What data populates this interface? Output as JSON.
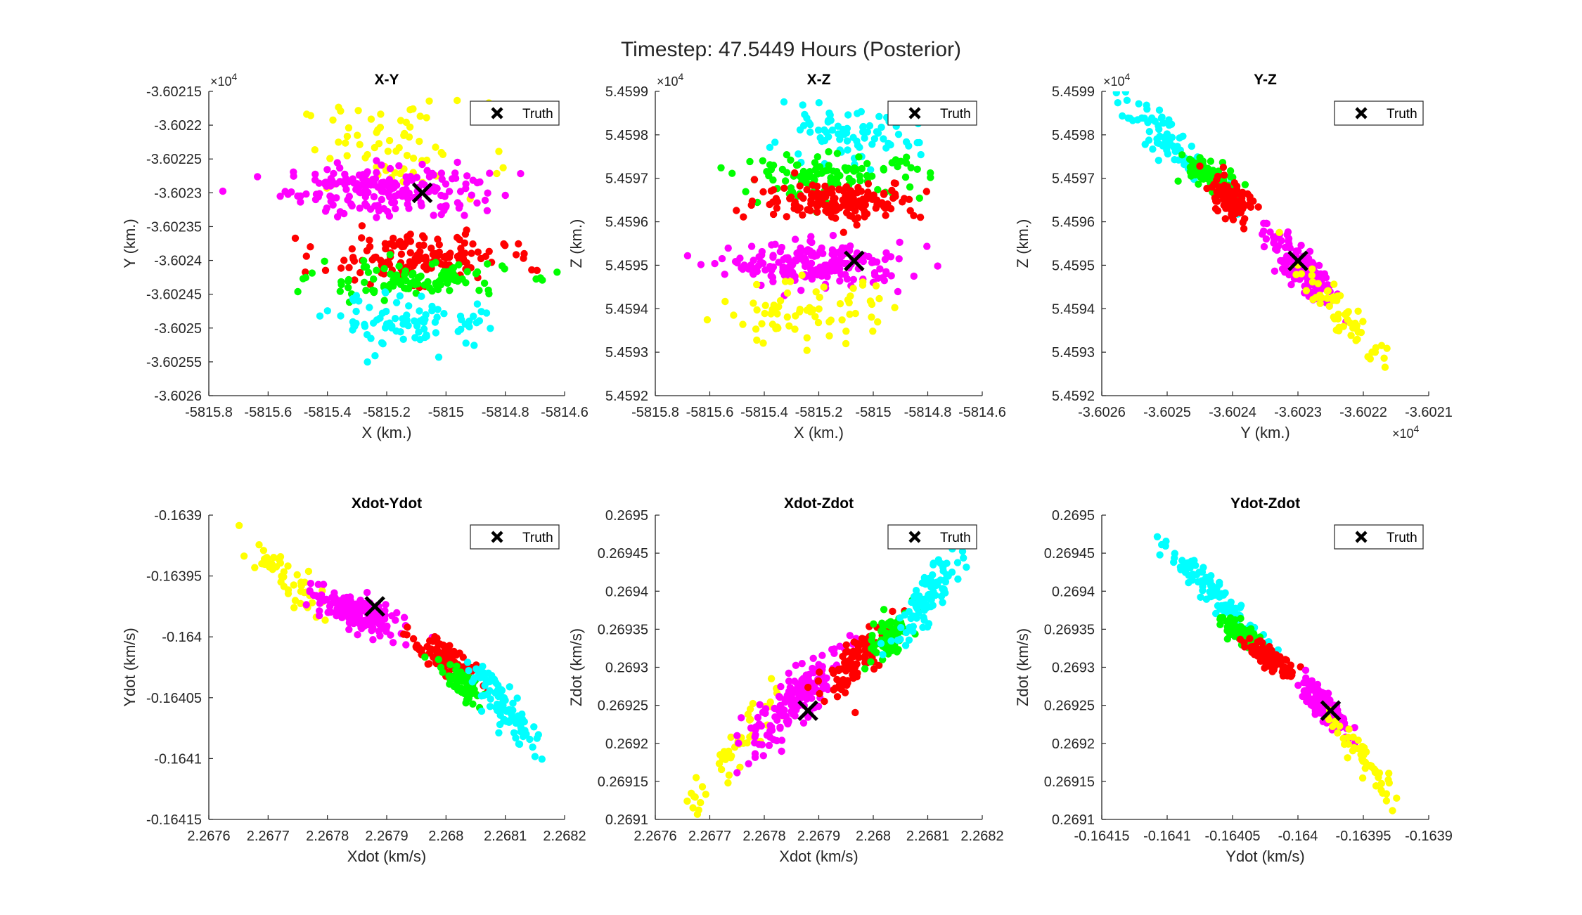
{
  "figure_title": "Timestep: 47.5449 Hours (Posterior)",
  "colors": {
    "yellow": "#ffff00",
    "magenta": "#ff00ff",
    "red": "#ff0000",
    "green": "#00ff00",
    "cyan": "#00ffff",
    "truth": "#000000",
    "axis": "#262626"
  },
  "chart_data": [
    {
      "type": "scatter",
      "title": "X-Y",
      "xlabel": "X (km.)",
      "ylabel": "Y (km.)",
      "xlim": [
        -5815.8,
        -5814.6
      ],
      "ylim": [
        -36026.0,
        -36021.5
      ],
      "xticks": [
        -5815.8,
        -5815.6,
        -5815.4,
        -5815.2,
        -5815.0,
        -5814.8,
        -5814.6
      ],
      "xtick_labels": [
        "-5815.8",
        "-5815.6",
        "-5815.4",
        "-5815.2",
        "-5815",
        "-5814.8",
        "-5814.6"
      ],
      "yticks": [
        -36026.0,
        -36025.5,
        -36025.0,
        -36024.5,
        -36024.0,
        -36023.5,
        -36023.0,
        -36022.5,
        -36022.0,
        -36021.5
      ],
      "ytick_labels": [
        "-3.6026",
        "-3.60255",
        "-3.6025",
        "-3.60245",
        "-3.6024",
        "-3.60235",
        "-3.6023",
        "-3.60225",
        "-3.6022",
        "-3.60215"
      ],
      "y_multiplier": "×10^4",
      "x_multiplier": "",
      "legend": "Truth",
      "legend_location": "top-right",
      "truth": [
        -5815.08,
        -36023.0
      ],
      "clusters": [
        {
          "color": "yellow",
          "cx": -5815.18,
          "cy": -36022.35,
          "sx": 0.16,
          "sy": 0.35,
          "n": 70
        },
        {
          "color": "magenta",
          "cx": -5815.2,
          "cy": -36022.95,
          "sx": 0.17,
          "sy": 0.2,
          "n": 190
        },
        {
          "color": "red",
          "cx": -5815.1,
          "cy": -36023.95,
          "sx": 0.15,
          "sy": 0.17,
          "n": 150
        },
        {
          "color": "green",
          "cx": -5815.12,
          "cy": -36024.3,
          "sx": 0.17,
          "sy": 0.13,
          "n": 110
        },
        {
          "color": "cyan",
          "cx": -5815.1,
          "cy": -36024.9,
          "sx": 0.14,
          "sy": 0.2,
          "n": 90
        }
      ]
    },
    {
      "type": "scatter",
      "title": "X-Z",
      "xlabel": "X (km.)",
      "ylabel": "Z (km.)",
      "xlim": [
        -5815.8,
        -5814.6
      ],
      "ylim": [
        54592,
        54599
      ],
      "xticks": [
        -5815.8,
        -5815.6,
        -5815.4,
        -5815.2,
        -5815.0,
        -5814.8,
        -5814.6
      ],
      "xtick_labels": [
        "-5815.8",
        "-5815.6",
        "-5815.4",
        "-5815.2",
        "-5815",
        "-5814.8",
        "-5814.6"
      ],
      "yticks": [
        54592,
        54593,
        54594,
        54595,
        54596,
        54597,
        54598,
        54599
      ],
      "ytick_labels": [
        "5.4592",
        "5.4593",
        "5.4594",
        "5.4595",
        "5.4596",
        "5.4597",
        "5.4598",
        "5.4599"
      ],
      "y_multiplier": "×10^4",
      "x_multiplier": "",
      "legend": "Truth",
      "legend_location": "top-right",
      "truth": [
        -5815.07,
        54595.1
      ],
      "clusters": [
        {
          "color": "cyan",
          "cx": -5815.12,
          "cy": 54597.9,
          "sx": 0.14,
          "sy": 0.3,
          "n": 80
        },
        {
          "color": "green",
          "cx": -5815.15,
          "cy": 54597.05,
          "sx": 0.17,
          "sy": 0.25,
          "n": 110
        },
        {
          "color": "red",
          "cx": -5815.12,
          "cy": 54596.5,
          "sx": 0.15,
          "sy": 0.22,
          "n": 160
        },
        {
          "color": "magenta",
          "cx": -5815.2,
          "cy": 54595.0,
          "sx": 0.16,
          "sy": 0.25,
          "n": 200
        },
        {
          "color": "yellow",
          "cx": -5815.25,
          "cy": 54593.9,
          "sx": 0.16,
          "sy": 0.35,
          "n": 70
        }
      ]
    },
    {
      "type": "scatter",
      "title": "Y-Z",
      "xlabel": "Y (km.)",
      "ylabel": "Z (km.)",
      "xlim": [
        -36026,
        -36021
      ],
      "ylim": [
        54592,
        54599
      ],
      "xticks": [
        -36026,
        -36025,
        -36024,
        -36023,
        -36022,
        -36021
      ],
      "xtick_labels": [
        "-3.6026",
        "-3.6025",
        "-3.6024",
        "-3.6023",
        "-3.6022",
        "-3.6021"
      ],
      "yticks": [
        54592,
        54593,
        54594,
        54595,
        54596,
        54597,
        54598,
        54599
      ],
      "ytick_labels": [
        "5.4592",
        "5.4593",
        "5.4594",
        "5.4595",
        "5.4596",
        "5.4597",
        "5.4598",
        "5.4599"
      ],
      "y_multiplier": "×10^4",
      "x_multiplier": "×10^4",
      "legend": "Truth",
      "legend_location": "top-right",
      "truth": [
        -36023.0,
        54595.1
      ],
      "clusters": [
        {
          "color": "cyan",
          "tx": -36025.0,
          "ty": 54597.9,
          "ex": -36025.7,
          "ey": 54598.9,
          "w": 0.12,
          "n": 80
        },
        {
          "color": "green",
          "tx": -36024.35,
          "ty": 54597.1,
          "ex": -36024.7,
          "ey": 54597.5,
          "w": 0.12,
          "n": 70
        },
        {
          "color": "red",
          "tx": -36024.0,
          "ty": 54596.5,
          "ex": -36024.25,
          "ey": 54596.9,
          "w": 0.12,
          "n": 100
        },
        {
          "color": "magenta",
          "tx": -36023.0,
          "ty": 54595.0,
          "ex": -36023.45,
          "ey": 54595.75,
          "w": 0.13,
          "n": 130
        },
        {
          "color": "yellow",
          "tx": -36022.3,
          "ty": 54593.8,
          "ex": -36021.65,
          "ey": 54592.7,
          "w": 0.11,
          "n": 60
        }
      ]
    },
    {
      "type": "scatter",
      "title": "Xdot-Ydot",
      "xlabel": "Xdot (km/s)",
      "ylabel": "Ydot (km/s)",
      "xlim": [
        2.2676,
        2.2682
      ],
      "ylim": [
        -0.16415,
        -0.1639
      ],
      "xticks": [
        2.2676,
        2.2677,
        2.2678,
        2.2679,
        2.268,
        2.2681,
        2.2682
      ],
      "xtick_labels": [
        "2.2676",
        "2.2677",
        "2.2678",
        "2.2679",
        "2.268",
        "2.2681",
        "2.2682"
      ],
      "yticks": [
        -0.16415,
        -0.1641,
        -0.16405,
        -0.164,
        -0.16395,
        -0.1639
      ],
      "ytick_labels": [
        "-0.16415",
        "-0.1641",
        "-0.16405",
        "-0.164",
        "-0.16395",
        "-0.1639"
      ],
      "y_multiplier": "",
      "x_multiplier": "",
      "legend": "Truth",
      "legend_location": "top-right",
      "truth": [
        2.26788,
        -0.163975
      ],
      "clusters": [
        {
          "color": "yellow",
          "tx": 2.26773,
          "ty": -0.16395,
          "ex": 2.26767,
          "ey": -0.16392,
          "w": 1.2e-05,
          "n": 50
        },
        {
          "color": "magenta",
          "tx": 2.26785,
          "ty": -0.16398,
          "ex": 2.26778,
          "ey": -0.163965,
          "w": 1.5e-05,
          "n": 160
        },
        {
          "color": "red",
          "tx": 2.268,
          "ty": -0.16402,
          "ex": 2.26795,
          "ey": -0.164005,
          "w": 1.4e-05,
          "n": 100
        },
        {
          "color": "green",
          "tx": 2.26803,
          "ty": -0.16404,
          "ex": 2.268,
          "ey": -0.164025,
          "w": 1.2e-05,
          "n": 60
        },
        {
          "color": "cyan",
          "tx": 2.2681,
          "ty": -0.16406,
          "ex": 2.26815,
          "ey": -0.164095,
          "w": 1.3e-05,
          "n": 90
        }
      ]
    },
    {
      "type": "scatter",
      "title": "Xdot-Zdot",
      "xlabel": "Xdot (km/s)",
      "ylabel": "Zdot (km/s)",
      "xlim": [
        2.2676,
        2.2682
      ],
      "ylim": [
        0.2691,
        0.2695
      ],
      "xticks": [
        2.2676,
        2.2677,
        2.2678,
        2.2679,
        2.268,
        2.2681,
        2.2682
      ],
      "xtick_labels": [
        "2.2676",
        "2.2677",
        "2.2678",
        "2.2679",
        "2.268",
        "2.2681",
        "2.2682"
      ],
      "yticks": [
        0.2691,
        0.26915,
        0.2692,
        0.26925,
        0.2693,
        0.26935,
        0.2694,
        0.26945,
        0.2695
      ],
      "ytick_labels": [
        "0.2691",
        "0.26915",
        "0.2692",
        "0.26925",
        "0.2693",
        "0.26935",
        "0.2694",
        "0.26945",
        "0.2695"
      ],
      "y_multiplier": "",
      "x_multiplier": "",
      "legend": "Truth",
      "legend_location": "top-right",
      "truth": [
        2.26788,
        0.269243
      ],
      "clusters": [
        {
          "color": "yellow",
          "tx": 2.26774,
          "ty": 0.26919,
          "ex": 2.26767,
          "ey": 0.26912,
          "w": 1.3e-05,
          "n": 55
        },
        {
          "color": "magenta",
          "tx": 2.26786,
          "ty": 0.26926,
          "ex": 2.26778,
          "ey": 0.2692,
          "w": 1.8e-05,
          "n": 170
        },
        {
          "color": "red",
          "tx": 2.26797,
          "ty": 0.26931,
          "ex": 2.26792,
          "ey": 0.26927,
          "w": 1.5e-05,
          "n": 100
        },
        {
          "color": "green",
          "tx": 2.26803,
          "ty": 0.26934,
          "ex": 2.268,
          "ey": 0.26931,
          "w": 1.4e-05,
          "n": 80
        },
        {
          "color": "cyan",
          "tx": 2.2681,
          "ty": 0.26939,
          "ex": 2.26815,
          "ey": 0.26945,
          "w": 1.4e-05,
          "n": 95
        }
      ]
    },
    {
      "type": "scatter",
      "title": "Ydot-Zdot",
      "xlabel": "Ydot (km/s)",
      "ylabel": "Zdot (km/s)",
      "xlim": [
        -0.16415,
        -0.1639
      ],
      "ylim": [
        0.2691,
        0.2695
      ],
      "xticks": [
        -0.16415,
        -0.1641,
        -0.16405,
        -0.164,
        -0.16395,
        -0.1639
      ],
      "xtick_labels": [
        "-0.16415",
        "-0.1641",
        "-0.16405",
        "-0.164",
        "-0.16395",
        "-0.1639"
      ],
      "yticks": [
        0.2691,
        0.26915,
        0.2692,
        0.26925,
        0.2693,
        0.26935,
        0.2694,
        0.26945,
        0.2695
      ],
      "ytick_labels": [
        "0.2691",
        "0.26915",
        "0.2692",
        "0.26925",
        "0.2693",
        "0.26935",
        "0.2694",
        "0.26945",
        "0.2695"
      ],
      "y_multiplier": "",
      "x_multiplier": "",
      "legend": "Truth",
      "legend_location": "top-right",
      "truth": [
        -0.163975,
        0.269243
      ],
      "clusters": [
        {
          "color": "cyan",
          "tx": -0.16406,
          "ty": 0.26939,
          "ex": -0.164095,
          "ey": 0.26945,
          "w": 4e-06,
          "n": 95
        },
        {
          "color": "green",
          "tx": -0.16404,
          "ty": 0.26934,
          "ex": -0.164025,
          "ey": 0.26932,
          "w": 4e-06,
          "n": 70
        },
        {
          "color": "red",
          "tx": -0.16402,
          "ty": 0.26931,
          "ex": -0.164005,
          "ey": 0.26929,
          "w": 4e-06,
          "n": 90
        },
        {
          "color": "magenta",
          "tx": -0.16398,
          "ty": 0.26925,
          "ex": -0.163995,
          "ey": 0.26928,
          "w": 4e-06,
          "n": 150
        },
        {
          "color": "yellow",
          "tx": -0.16395,
          "ty": 0.26918,
          "ex": -0.163925,
          "ey": 0.26912,
          "w": 4e-06,
          "n": 50
        }
      ]
    }
  ]
}
